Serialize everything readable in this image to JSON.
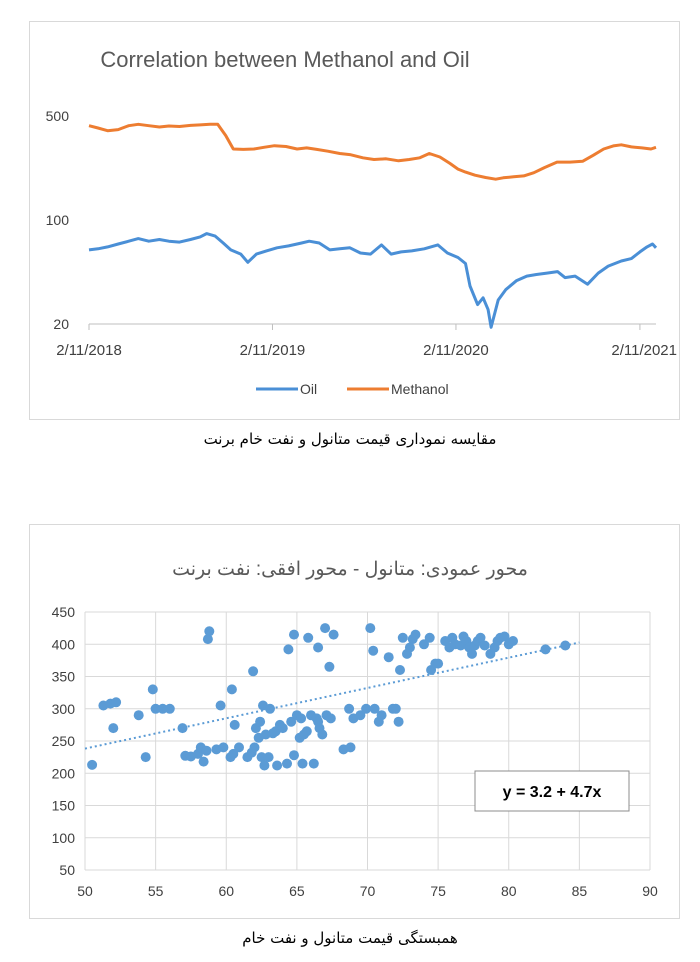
{
  "chart_data": [
    {
      "type": "line",
      "title": "Correlation between Methanol and Oil",
      "y_scale": "log",
      "ylim": [
        20,
        500
      ],
      "y_ticks": [
        "500",
        "100",
        "20"
      ],
      "x_ticks": [
        "2/11/2018",
        "2/11/2019",
        "2/11/2020",
        "2/11/2021"
      ],
      "x_range": [
        "2018-02-11",
        "2021-03-15"
      ],
      "legend_position": "bottom",
      "grid": false,
      "series": [
        {
          "name": "Oil",
          "color": "#4a8fd6",
          "points": [
            [
              "2018-02-11",
              63
            ],
            [
              "2018-03-01",
              64
            ],
            [
              "2018-03-20",
              66
            ],
            [
              "2018-04-10",
              69
            ],
            [
              "2018-05-01",
              72
            ],
            [
              "2018-05-20",
              75
            ],
            [
              "2018-06-10",
              72
            ],
            [
              "2018-07-01",
              74
            ],
            [
              "2018-07-20",
              72
            ],
            [
              "2018-08-10",
              71
            ],
            [
              "2018-09-01",
              74
            ],
            [
              "2018-09-20",
              77
            ],
            [
              "2018-10-03",
              81
            ],
            [
              "2018-10-20",
              78
            ],
            [
              "2018-11-05",
              70
            ],
            [
              "2018-11-20",
              63
            ],
            [
              "2018-12-10",
              59
            ],
            [
              "2018-12-24",
              52
            ],
            [
              "2019-01-10",
              59
            ],
            [
              "2019-01-30",
              62
            ],
            [
              "2019-02-20",
              65
            ],
            [
              "2019-03-15",
              67
            ],
            [
              "2019-04-10",
              70
            ],
            [
              "2019-04-25",
              72
            ],
            [
              "2019-05-15",
              70
            ],
            [
              "2019-06-05",
              63
            ],
            [
              "2019-06-25",
              64
            ],
            [
              "2019-07-15",
              65
            ],
            [
              "2019-08-05",
              60
            ],
            [
              "2019-08-25",
              59
            ],
            [
              "2019-09-16",
              68
            ],
            [
              "2019-10-05",
              59
            ],
            [
              "2019-10-25",
              61
            ],
            [
              "2019-11-15",
              62
            ],
            [
              "2019-12-10",
              64
            ],
            [
              "2020-01-06",
              68
            ],
            [
              "2020-01-25",
              60
            ],
            [
              "2020-02-15",
              56
            ],
            [
              "2020-03-01",
              51
            ],
            [
              "2020-03-10",
              36
            ],
            [
              "2020-03-25",
              27
            ],
            [
              "2020-04-05",
              30
            ],
            [
              "2020-04-15",
              25
            ],
            [
              "2020-04-21",
              19
            ],
            [
              "2020-05-05",
              29
            ],
            [
              "2020-05-20",
              34
            ],
            [
              "2020-06-10",
              39
            ],
            [
              "2020-07-01",
              42
            ],
            [
              "2020-07-20",
              43
            ],
            [
              "2020-08-10",
              44
            ],
            [
              "2020-08-31",
              45
            ],
            [
              "2020-09-15",
              41
            ],
            [
              "2020-10-05",
              42
            ],
            [
              "2020-10-30",
              37
            ],
            [
              "2020-11-20",
              44
            ],
            [
              "2020-12-10",
              49
            ],
            [
              "2021-01-05",
              53
            ],
            [
              "2021-01-25",
              55
            ],
            [
              "2021-02-11",
              61
            ],
            [
              "2021-02-25",
              66
            ],
            [
              "2021-03-08",
              69
            ],
            [
              "2021-03-15",
              65
            ]
          ]
        },
        {
          "name": "Methanol",
          "color": "#ed7d31",
          "points": [
            [
              "2018-02-11",
              430
            ],
            [
              "2018-03-01",
              415
            ],
            [
              "2018-03-20",
              398
            ],
            [
              "2018-04-10",
              405
            ],
            [
              "2018-05-01",
              430
            ],
            [
              "2018-05-20",
              440
            ],
            [
              "2018-06-10",
              430
            ],
            [
              "2018-07-01",
              422
            ],
            [
              "2018-07-20",
              428
            ],
            [
              "2018-08-10",
              425
            ],
            [
              "2018-09-01",
              432
            ],
            [
              "2018-09-20",
              436
            ],
            [
              "2018-10-10",
              440
            ],
            [
              "2018-10-25",
              440
            ],
            [
              "2018-11-10",
              370
            ],
            [
              "2018-11-25",
              300
            ],
            [
              "2018-12-15",
              298
            ],
            [
              "2019-01-05",
              300
            ],
            [
              "2019-01-25",
              308
            ],
            [
              "2019-02-15",
              316
            ],
            [
              "2019-03-10",
              312
            ],
            [
              "2019-04-01",
              300
            ],
            [
              "2019-04-20",
              305
            ],
            [
              "2019-05-10",
              298
            ],
            [
              "2019-06-01",
              290
            ],
            [
              "2019-06-25",
              280
            ],
            [
              "2019-07-15",
              275
            ],
            [
              "2019-08-10",
              262
            ],
            [
              "2019-09-01",
              255
            ],
            [
              "2019-09-25",
              258
            ],
            [
              "2019-10-20",
              250
            ],
            [
              "2019-11-10",
              255
            ],
            [
              "2019-12-01",
              262
            ],
            [
              "2019-12-20",
              280
            ],
            [
              "2020-01-10",
              265
            ],
            [
              "2020-01-30",
              240
            ],
            [
              "2020-02-15",
              220
            ],
            [
              "2020-03-01",
              210
            ],
            [
              "2020-03-20",
              200
            ],
            [
              "2020-04-10",
              193
            ],
            [
              "2020-04-30",
              188
            ],
            [
              "2020-05-15",
              192
            ],
            [
              "2020-06-05",
              195
            ],
            [
              "2020-06-25",
              198
            ],
            [
              "2020-07-15",
              208
            ],
            [
              "2020-08-05",
              225
            ],
            [
              "2020-08-30",
              245
            ],
            [
              "2020-09-25",
              245
            ],
            [
              "2020-10-20",
              248
            ],
            [
              "2020-11-10",
              272
            ],
            [
              "2020-12-01",
              300
            ],
            [
              "2020-12-20",
              315
            ],
            [
              "2021-01-05",
              320
            ],
            [
              "2021-01-25",
              310
            ],
            [
              "2021-02-15",
              305
            ],
            [
              "2021-03-05",
              300
            ],
            [
              "2021-03-15",
              308
            ]
          ]
        }
      ]
    },
    {
      "type": "scatter",
      "title": "محور عمودی: متانول - محور افقی: نفت برنت",
      "xlim": [
        50,
        90
      ],
      "ylim": [
        50,
        450
      ],
      "x_ticks": [
        "50",
        "55",
        "60",
        "65",
        "70",
        "75",
        "80",
        "85",
        "90"
      ],
      "y_ticks": [
        "50",
        "100",
        "150",
        "200",
        "250",
        "300",
        "350",
        "400",
        "450"
      ],
      "grid": true,
      "trendline": {
        "intercept": 3.2,
        "slope": 4.7,
        "x_range": [
          50,
          85
        ],
        "equation": "y = 3.2 + 4.7x"
      },
      "series": [
        {
          "name": "",
          "color": "#5b9bd5",
          "points": [
            [
              50.5,
              213
            ],
            [
              51.3,
              305
            ],
            [
              51.8,
              308
            ],
            [
              52.2,
              310
            ],
            [
              52.0,
              270
            ],
            [
              53.8,
              290
            ],
            [
              54.3,
              225
            ],
            [
              54.8,
              330
            ],
            [
              55.0,
              300
            ],
            [
              55.5,
              300
            ],
            [
              56.0,
              300
            ],
            [
              56.9,
              270
            ],
            [
              57.1,
              227
            ],
            [
              57.5,
              226
            ],
            [
              58.0,
              230
            ],
            [
              58.2,
              240
            ],
            [
              58.4,
              218
            ],
            [
              58.6,
              235
            ],
            [
              58.7,
              408
            ],
            [
              58.8,
              420
            ],
            [
              59.3,
              237
            ],
            [
              59.6,
              305
            ],
            [
              59.8,
              240
            ],
            [
              60.3,
              225
            ],
            [
              60.4,
              330
            ],
            [
              60.5,
              230
            ],
            [
              60.6,
              275
            ],
            [
              60.9,
              240
            ],
            [
              61.5,
              225
            ],
            [
              61.8,
              232
            ],
            [
              61.9,
              358
            ],
            [
              62.0,
              240
            ],
            [
              62.1,
              270
            ],
            [
              62.3,
              255
            ],
            [
              62.4,
              280
            ],
            [
              62.5,
              225
            ],
            [
              62.6,
              305
            ],
            [
              62.7,
              212
            ],
            [
              62.8,
              260
            ],
            [
              63.0,
              225
            ],
            [
              63.1,
              300
            ],
            [
              63.3,
              262
            ],
            [
              63.5,
              265
            ],
            [
              63.6,
              212
            ],
            [
              63.8,
              275
            ],
            [
              64.0,
              270
            ],
            [
              64.3,
              215
            ],
            [
              64.4,
              392
            ],
            [
              64.6,
              280
            ],
            [
              64.8,
              228
            ],
            [
              64.8,
              415
            ],
            [
              65.0,
              290
            ],
            [
              65.2,
              255
            ],
            [
              65.3,
              285
            ],
            [
              65.4,
              215
            ],
            [
              65.5,
              260
            ],
            [
              65.7,
              265
            ],
            [
              65.8,
              410
            ],
            [
              66.0,
              290
            ],
            [
              66.2,
              215
            ],
            [
              66.4,
              285
            ],
            [
              66.5,
              280
            ],
            [
              66.5,
              395
            ],
            [
              66.6,
              270
            ],
            [
              66.8,
              260
            ],
            [
              67.0,
              425
            ],
            [
              67.1,
              290
            ],
            [
              67.3,
              365
            ],
            [
              67.4,
              285
            ],
            [
              67.6,
              415
            ],
            [
              68.3,
              237
            ],
            [
              68.7,
              300
            ],
            [
              68.8,
              240
            ],
            [
              69.0,
              285
            ],
            [
              69.5,
              290
            ],
            [
              69.9,
              300
            ],
            [
              70.2,
              425
            ],
            [
              70.4,
              390
            ],
            [
              70.5,
              300
            ],
            [
              70.8,
              280
            ],
            [
              71.0,
              290
            ],
            [
              71.5,
              380
            ],
            [
              71.8,
              300
            ],
            [
              72.0,
              300
            ],
            [
              72.2,
              280
            ],
            [
              72.3,
              360
            ],
            [
              72.5,
              410
            ],
            [
              72.8,
              385
            ],
            [
              73.0,
              395
            ],
            [
              73.2,
              408
            ],
            [
              73.4,
              415
            ],
            [
              74.0,
              400
            ],
            [
              74.4,
              410
            ],
            [
              74.5,
              360
            ],
            [
              74.8,
              370
            ],
            [
              75.0,
              370
            ],
            [
              75.5,
              405
            ],
            [
              75.8,
              395
            ],
            [
              76.0,
              410
            ],
            [
              76.2,
              400
            ],
            [
              76.6,
              398
            ],
            [
              76.8,
              412
            ],
            [
              77.0,
              405
            ],
            [
              77.2,
              395
            ],
            [
              77.4,
              385
            ],
            [
              77.6,
              398
            ],
            [
              77.8,
              405
            ],
            [
              78.0,
              410
            ],
            [
              78.3,
              398
            ],
            [
              78.7,
              385
            ],
            [
              79.0,
              395
            ],
            [
              79.2,
              405
            ],
            [
              79.4,
              410
            ],
            [
              79.7,
              412
            ],
            [
              80.0,
              400
            ],
            [
              80.3,
              405
            ],
            [
              82.6,
              392
            ],
            [
              84.0,
              398
            ]
          ]
        }
      ]
    }
  ],
  "captions": {
    "chart1": "مقایسه نموداری قیمت متانول و نفت خام برنت",
    "chart2": "همبستگی قیمت متانول و نفت خام"
  }
}
